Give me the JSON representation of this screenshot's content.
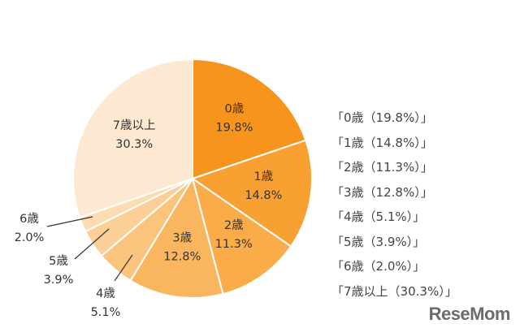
{
  "chart_data": {
    "type": "pie",
    "categories": [
      "0歳",
      "1歳",
      "2歳",
      "3歳",
      "4歳",
      "5歳",
      "6歳",
      "7歳以上"
    ],
    "values": [
      19.8,
      14.8,
      11.3,
      12.8,
      5.1,
      3.9,
      2.0,
      30.3
    ],
    "labels": [
      "19.8%",
      "14.8%",
      "11.3%",
      "12.8%",
      "5.1%",
      "3.9%",
      "2.0%",
      "30.3%"
    ],
    "colors": [
      "#f7941d",
      "#f8a031",
      "#f9ac47",
      "#fab65f",
      "#fbc47d",
      "#fccf96",
      "#fddcb2",
      "#fde9d1"
    ],
    "start": "top, clockwise",
    "legend_placement": "right",
    "legend": [
      "「0歳（19.8%）」",
      "「1歳（14.8%）」",
      "「2歳（11.3%）」",
      "「3歳（12.8%）」",
      "「4歳（5.1%）」",
      "「5歳（3.9%）」",
      "「6歳（2.0%）」",
      "「7歳以上（30.3%）」"
    ]
  },
  "watermark": "ReseMom"
}
